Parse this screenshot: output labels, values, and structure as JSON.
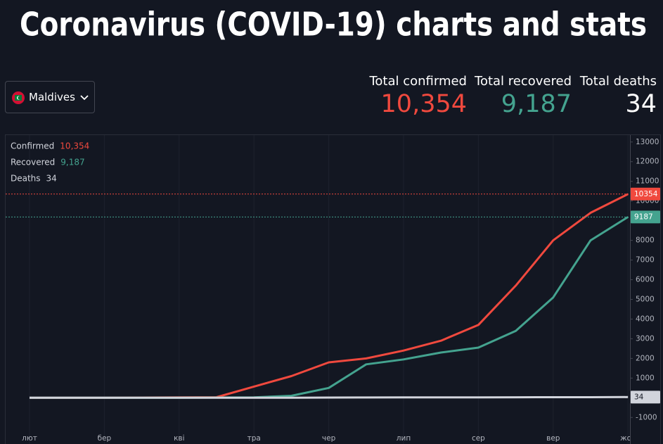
{
  "header": {
    "title": "Coronavirus (COVID-19) charts and stats"
  },
  "selector": {
    "country": "Maldives"
  },
  "stats": [
    {
      "label": "Total confirmed",
      "value": "10,354",
      "color": "#f0493e"
    },
    {
      "label": "Total recovered",
      "value": "9,187",
      "color": "#44a38f"
    },
    {
      "label": "Total deaths",
      "value": "34",
      "color": "#ffffff"
    }
  ],
  "chart_data": {
    "type": "line",
    "categories": [
      "лют",
      null,
      "бер",
      null,
      "кві",
      null,
      "тра",
      null,
      "чер",
      null,
      "лип",
      null,
      "сер",
      null,
      "вер",
      null,
      "жов"
    ],
    "series": [
      {
        "name": "Confirmed",
        "color": "#f0493e",
        "last_label": "10,354",
        "values": [
          0,
          0,
          0,
          10,
          20,
          30,
          570,
          1100,
          1800,
          2000,
          2400,
          2900,
          3700,
          5700,
          8000,
          9400,
          10354
        ]
      },
      {
        "name": "Recovered",
        "color": "#44a38f",
        "last_label": "9,187",
        "values": [
          0,
          0,
          0,
          0,
          0,
          10,
          20,
          100,
          500,
          1700,
          1950,
          2300,
          2550,
          3400,
          5100,
          8000,
          9187
        ]
      },
      {
        "name": "Deaths",
        "color": "#d1d4dc",
        "last_label": "34",
        "values": [
          0,
          0,
          0,
          0,
          0,
          0,
          1,
          4,
          10,
          15,
          16,
          18,
          20,
          25,
          28,
          30,
          34
        ]
      }
    ],
    "ylim": [
      -2350,
      13350
    ],
    "yticks": [
      -1000,
      0,
      1000,
      2000,
      3000,
      4000,
      5000,
      6000,
      7000,
      8000,
      9000,
      10000,
      11000,
      12000,
      13000
    ],
    "grid": true
  }
}
